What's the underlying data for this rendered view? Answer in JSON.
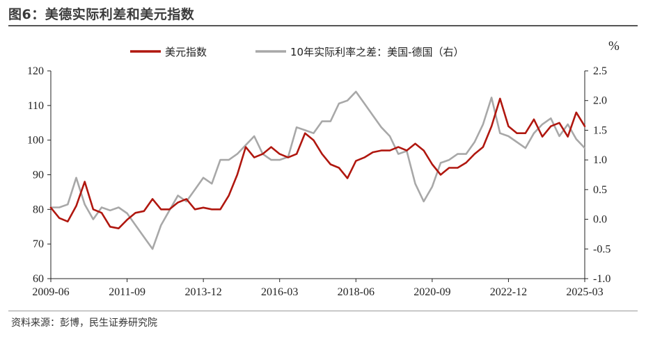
{
  "figure": {
    "title": "图6：美德实际利差和美元指数",
    "source": "资料来源：彭博，民生证券研究院"
  },
  "colors": {
    "dollar_index": "#b0170f",
    "real_rate_spread": "#a8a8a8",
    "axis": "#222222"
  },
  "chart_data": {
    "type": "line",
    "title": "",
    "xlabel": "",
    "ylabel": "",
    "y2label": "%",
    "legend_position": "top-center",
    "grid": false,
    "x_range": [
      "2009-06",
      "2025-03"
    ],
    "x_ticks": [
      "2009-06",
      "2011-09",
      "2013-12",
      "2016-03",
      "2018-06",
      "2020-09",
      "2022-12",
      "2025-03"
    ],
    "ylim": [
      60,
      120
    ],
    "y_ticks": [
      "60",
      "70",
      "80",
      "90",
      "100",
      "110",
      "120"
    ],
    "y2lim": [
      -1.0,
      2.5
    ],
    "y2_ticks": [
      "-1.0",
      "-0.5",
      "0.0",
      "0.5",
      "1.0",
      "1.5",
      "2.0",
      "2.5"
    ],
    "series": [
      {
        "name": "美元指数",
        "axis": "left",
        "x": [
          "2009-06",
          "2009-09",
          "2009-12",
          "2010-03",
          "2010-06",
          "2010-09",
          "2010-12",
          "2011-03",
          "2011-06",
          "2011-09",
          "2011-12",
          "2012-03",
          "2012-06",
          "2012-09",
          "2012-12",
          "2013-03",
          "2013-06",
          "2013-09",
          "2013-12",
          "2014-03",
          "2014-06",
          "2014-09",
          "2014-12",
          "2015-03",
          "2015-06",
          "2015-09",
          "2015-12",
          "2016-03",
          "2016-06",
          "2016-09",
          "2016-12",
          "2017-03",
          "2017-06",
          "2017-09",
          "2017-12",
          "2018-03",
          "2018-06",
          "2018-09",
          "2018-12",
          "2019-03",
          "2019-06",
          "2019-09",
          "2019-12",
          "2020-03",
          "2020-06",
          "2020-09",
          "2020-12",
          "2021-03",
          "2021-06",
          "2021-09",
          "2021-12",
          "2022-03",
          "2022-06",
          "2022-09",
          "2022-12",
          "2023-03",
          "2023-06",
          "2023-09",
          "2023-12",
          "2024-03",
          "2024-06",
          "2024-09",
          "2024-12",
          "2025-03"
        ],
        "values": [
          80.5,
          77.5,
          76.5,
          81,
          88,
          80,
          79,
          75,
          74.5,
          77,
          79,
          79.5,
          83,
          80,
          80,
          82,
          83,
          80,
          80.5,
          80,
          80,
          84,
          90,
          98,
          95,
          96,
          98,
          96,
          95,
          96,
          102,
          100,
          96,
          93,
          92,
          89,
          94,
          95,
          96.5,
          97,
          97,
          98,
          97,
          99,
          97,
          93,
          90,
          92,
          92,
          93.5,
          96,
          98,
          104,
          112,
          104,
          102,
          102,
          106,
          101,
          104,
          105,
          101,
          108,
          104
        ]
      },
      {
        "name": "10年实际利率之差：美国-德国（右）",
        "axis": "right",
        "x": [
          "2009-06",
          "2009-09",
          "2009-12",
          "2010-03",
          "2010-06",
          "2010-09",
          "2010-12",
          "2011-03",
          "2011-06",
          "2011-09",
          "2011-12",
          "2012-03",
          "2012-06",
          "2012-09",
          "2012-12",
          "2013-03",
          "2013-06",
          "2013-09",
          "2013-12",
          "2014-03",
          "2014-06",
          "2014-09",
          "2014-12",
          "2015-03",
          "2015-06",
          "2015-09",
          "2015-12",
          "2016-03",
          "2016-06",
          "2016-09",
          "2016-12",
          "2017-03",
          "2017-06",
          "2017-09",
          "2017-12",
          "2018-03",
          "2018-06",
          "2018-09",
          "2018-12",
          "2019-03",
          "2019-06",
          "2019-09",
          "2019-12",
          "2020-03",
          "2020-06",
          "2020-09",
          "2020-12",
          "2021-03",
          "2021-06",
          "2021-09",
          "2021-12",
          "2022-03",
          "2022-06",
          "2022-09",
          "2022-12",
          "2023-03",
          "2023-06",
          "2023-09",
          "2023-12",
          "2024-03",
          "2024-06",
          "2024-09",
          "2024-12",
          "2025-03"
        ],
        "values": [
          0.2,
          0.2,
          0.25,
          0.7,
          0.25,
          0.0,
          0.2,
          0.15,
          0.2,
          0.1,
          -0.1,
          -0.3,
          -0.5,
          -0.1,
          0.15,
          0.4,
          0.3,
          0.5,
          0.7,
          0.6,
          1.0,
          1.0,
          1.1,
          1.25,
          1.4,
          1.1,
          1.0,
          1.0,
          1.05,
          1.55,
          1.5,
          1.45,
          1.65,
          1.65,
          1.95,
          2.0,
          2.15,
          1.95,
          1.75,
          1.55,
          1.4,
          1.1,
          1.15,
          0.6,
          0.3,
          0.55,
          0.95,
          1.0,
          1.1,
          1.1,
          1.3,
          1.6,
          2.05,
          1.45,
          1.4,
          1.3,
          1.2,
          1.45,
          1.6,
          1.7,
          1.4,
          1.6,
          1.35,
          1.2
        ]
      }
    ]
  }
}
